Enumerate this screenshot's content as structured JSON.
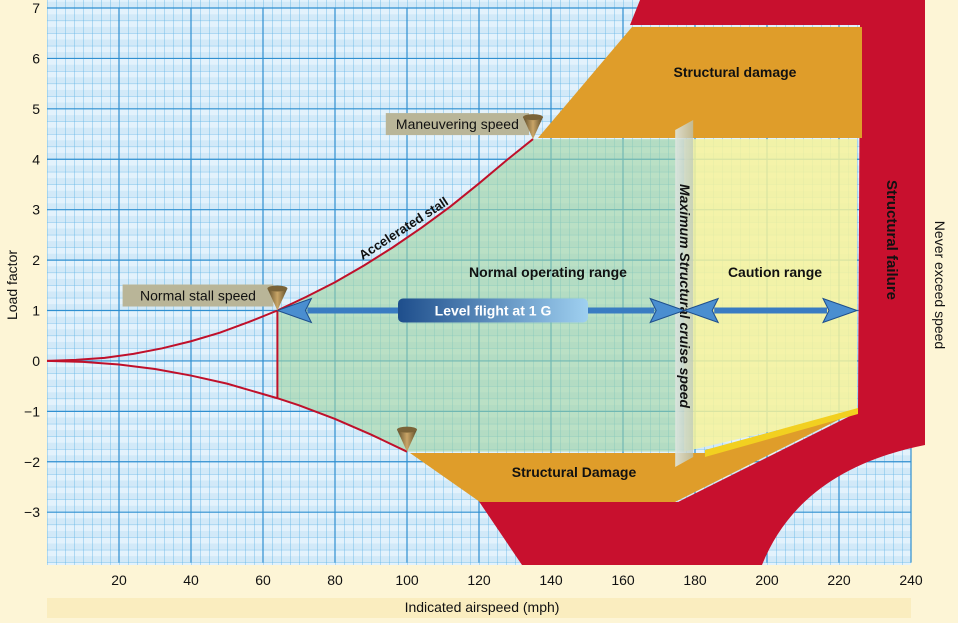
{
  "chart_data": {
    "type": "vg",
    "xlabel": "Indicated airspeed (mph)",
    "ylabel": "Load factor",
    "y2label": "Never exceed speed",
    "xlim": [
      0,
      240
    ],
    "xticks": [
      20,
      40,
      60,
      80,
      100,
      120,
      140,
      160,
      180,
      200,
      220,
      240
    ],
    "ylim": [
      -4,
      7
    ],
    "yticks": [
      {
        "value": -3,
        "label": "−3"
      },
      {
        "value": -2,
        "label": "−2"
      },
      {
        "value": -1,
        "label": "−1"
      },
      0,
      1,
      2,
      3,
      4,
      5,
      6,
      7
    ],
    "series": [
      {
        "name": "Accelerated stall",
        "color": "#c0102a",
        "x": [
          0,
          8,
          16,
          24,
          32,
          40,
          48,
          56,
          64,
          72,
          80,
          88,
          96,
          104,
          112,
          120,
          128,
          135
        ],
        "values": [
          0,
          0.02,
          0.06,
          0.14,
          0.25,
          0.39,
          0.56,
          0.77,
          1,
          1.27,
          1.56,
          1.89,
          2.25,
          2.64,
          3.06,
          3.52,
          4,
          4.4
        ]
      },
      {
        "name": null,
        "color": "#c0102a",
        "x": [
          0,
          10,
          20,
          30,
          40,
          50,
          64,
          70,
          80,
          90,
          100
        ],
        "values": [
          0,
          -0.02,
          -0.07,
          -0.16,
          -0.29,
          -0.45,
          -0.74,
          -0.88,
          -1.15,
          -1.46,
          -1.8
        ]
      }
    ],
    "markers": [
      {
        "label": "Normal stall speed",
        "x": 64,
        "y": 1
      },
      {
        "label": "Maneuvering speed",
        "x": 135,
        "y": 4.4
      },
      {
        "label": null,
        "x": 100,
        "y": -1.8
      }
    ],
    "cruise_speed": {
      "label": "Maximum Structural cruise speed",
      "x": 177
    },
    "never_exceed_speed": {
      "x": 225,
      "lower_limit": -1.0
    },
    "limits": {
      "positive": 4.4,
      "negative": -1.8
    },
    "level_flight": {
      "label": "Level flight at 1 G",
      "value": 1
    },
    "regions": {
      "normal": "Normal operating range",
      "caution": "Caution range",
      "damage_top": "Structural damage",
      "damage_bottom": "Structural Damage",
      "failure": "Structural  failure"
    }
  }
}
